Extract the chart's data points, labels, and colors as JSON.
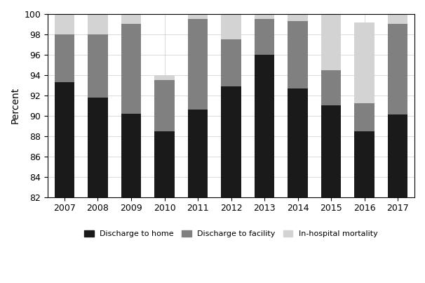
{
  "years": [
    2007,
    2008,
    2009,
    2010,
    2011,
    2012,
    2013,
    2014,
    2015,
    2016,
    2017
  ],
  "home": [
    93.3,
    91.8,
    90.2,
    88.5,
    90.6,
    92.9,
    96.0,
    92.7,
    91.0,
    88.5,
    90.1
  ],
  "facility": [
    4.7,
    6.2,
    8.8,
    5.0,
    8.9,
    4.6,
    3.5,
    6.6,
    3.5,
    2.7,
    8.9
  ],
  "mortality": [
    2.0,
    2.0,
    1.0,
    0.5,
    0.5,
    2.5,
    0.5,
    0.7,
    5.5,
    8.0,
    1.0
  ],
  "color_home": "#1a1a1a",
  "color_facility": "#808080",
  "color_mortality": "#d3d3d3",
  "ylim_min": 82,
  "ylim_max": 100,
  "ylabel": "Percent",
  "legend_labels": [
    "Discharge to home",
    "Discharge to facility",
    "In-hospital mortality"
  ],
  "bar_width": 0.6
}
